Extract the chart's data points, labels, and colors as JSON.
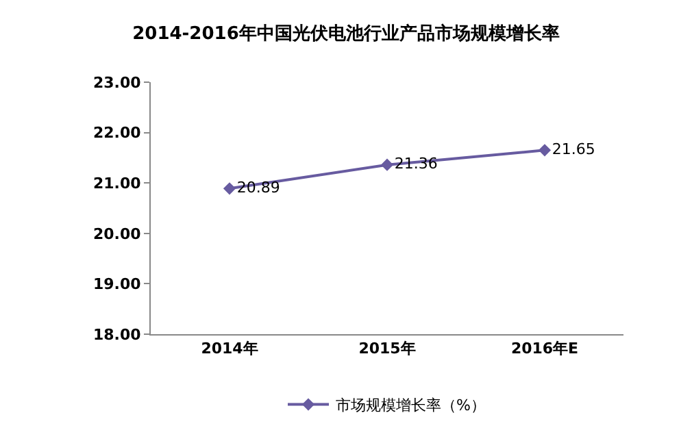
{
  "chart_data": {
    "type": "line",
    "title": "2014-2016年中国光伏电池行业产品市场规模增长率",
    "categories": [
      "2014年",
      "2015年",
      "2016年E"
    ],
    "series": [
      {
        "name": "市场规模增长率（%）",
        "color": "#675ba0",
        "values": [
          20.89,
          21.36,
          21.65
        ]
      }
    ],
    "ylim": [
      18,
      23
    ],
    "yticks": [
      {
        "value": 18,
        "label": "18.00"
      },
      {
        "value": 19,
        "label": "19.00"
      },
      {
        "value": 20,
        "label": "20.00"
      },
      {
        "value": 21,
        "label": "21.00"
      },
      {
        "value": 22,
        "label": "22.00"
      },
      {
        "value": 23,
        "label": "23.00"
      }
    ],
    "grid": false,
    "legend": "bottom",
    "marker": "diamond",
    "line_style": "solid",
    "data_labels": true
  }
}
